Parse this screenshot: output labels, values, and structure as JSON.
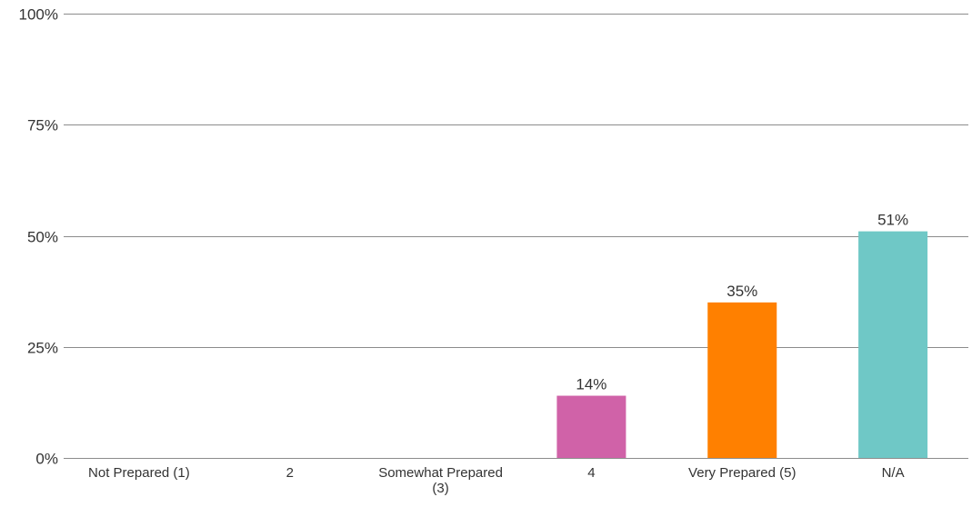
{
  "chart_data": {
    "type": "bar",
    "categories": [
      "Not Prepared (1)",
      "2",
      "Somewhat Prepared (3)",
      "4",
      "Very Prepared (5)",
      "N/A"
    ],
    "values": [
      0,
      0,
      0,
      14,
      35,
      51
    ],
    "data_labels": [
      "",
      "",
      "",
      "14%",
      "35%",
      "51%"
    ],
    "colors": [
      "#4e86c6",
      "#c0504d",
      "#9bbb59",
      "#d062a8",
      "#ff8000",
      "#6fc8c6"
    ],
    "yticks": [
      {
        "value": 0,
        "label": "0%"
      },
      {
        "value": 25,
        "label": "25%"
      },
      {
        "value": 50,
        "label": "50%"
      },
      {
        "value": 75,
        "label": "75%"
      },
      {
        "value": 100,
        "label": "100%"
      }
    ],
    "ylim": [
      0,
      100
    ],
    "grid": true,
    "title": "",
    "xlabel": "",
    "ylabel": ""
  }
}
